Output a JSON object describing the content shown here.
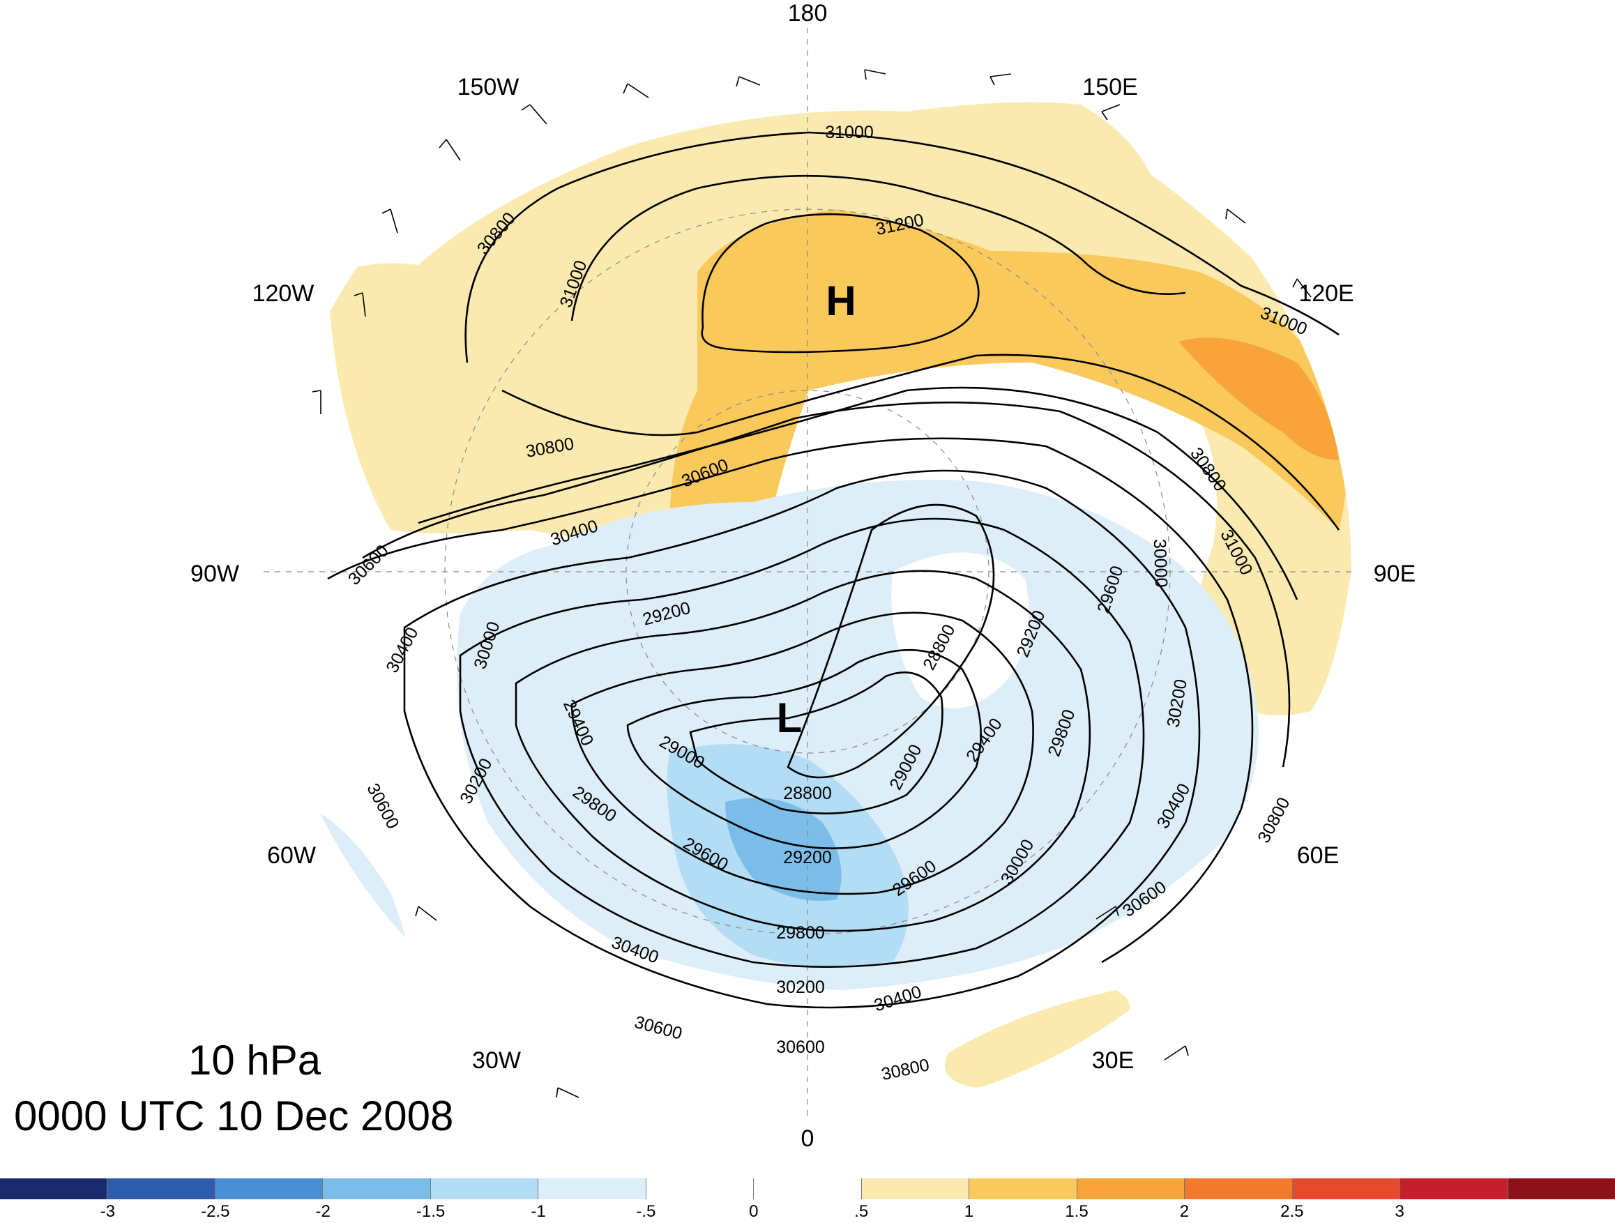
{
  "title": {
    "level": "10 hPa",
    "time": "0000 UTC 10 Dec 2008"
  },
  "map": {
    "projection": "north polar stereographic",
    "longitude_labels": [
      "180",
      "150E",
      "120E",
      "90E",
      "60E",
      "30E",
      "0",
      "30W",
      "60W",
      "90W",
      "120W",
      "150W"
    ],
    "centers": [
      "H",
      "L"
    ],
    "contour_labels": [
      "31000",
      "31200",
      "31000",
      "30800",
      "31000",
      "30800",
      "30600",
      "30400",
      "30600",
      "30400",
      "30000",
      "29200",
      "29400",
      "30200",
      "30600",
      "29800",
      "29000",
      "28800",
      "29200",
      "29600",
      "30400",
      "29800",
      "30200",
      "30600",
      "30600",
      "30400",
      "29600",
      "29000",
      "29400",
      "29800",
      "28800",
      "29200",
      "29600",
      "30000",
      "30200",
      "30400",
      "30600",
      "30800",
      "30800",
      "30800",
      "31000",
      "30000"
    ]
  },
  "colorbar": {
    "ticks": [
      "-3",
      "-2.5",
      "-2",
      "-1.5",
      "-1",
      "-.5",
      "0",
      ".5",
      "1",
      "1.5",
      "2",
      "2.5",
      "3"
    ],
    "colors": [
      "#1b2a6b",
      "#2f5bab",
      "#4a8fd4",
      "#7bbde8",
      "#b3dcf5",
      "#ddeef9",
      "#ffffff",
      "#ffffff",
      "#fbeab0",
      "#fac95c",
      "#f8a43a",
      "#f27a2a",
      "#e54a2a",
      "#c41f2b",
      "#8e1118"
    ]
  }
}
